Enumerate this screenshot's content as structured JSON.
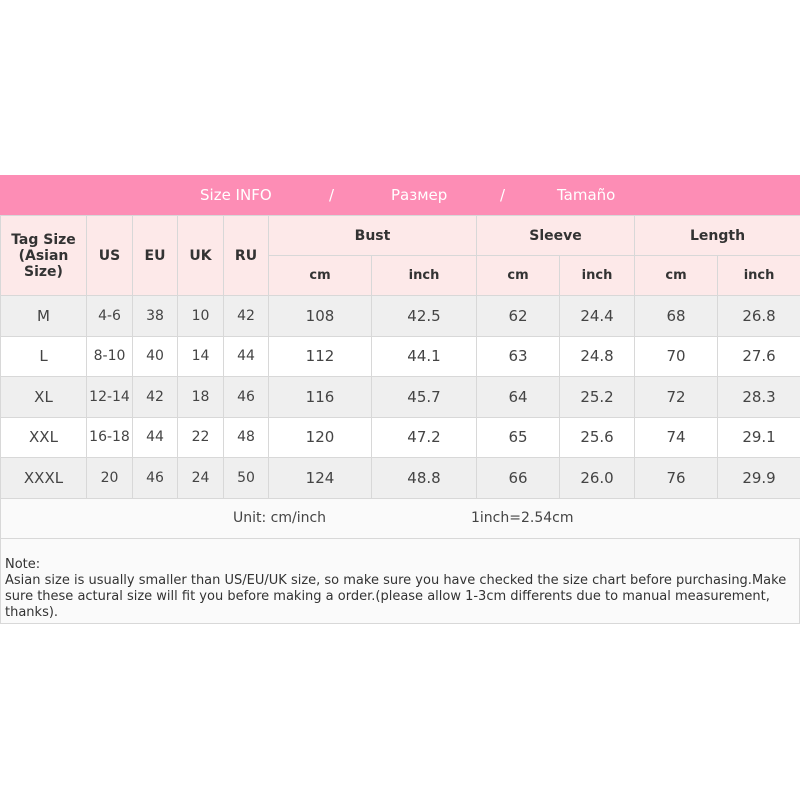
{
  "banner": {
    "title_en": "Size INFO",
    "sep": "/",
    "title_ru": "Размер",
    "title_es": "Tamaño"
  },
  "headers": {
    "tag": "Tag Size",
    "tag2": "(Asian Size)",
    "us": "US",
    "eu": "EU",
    "uk": "UK",
    "ru": "RU",
    "bust": "Bust",
    "sleeve": "Sleeve",
    "length": "Length",
    "cm": "cm",
    "inch": "inch"
  },
  "rows": [
    [
      "M",
      "4-6",
      "38",
      "10",
      "42",
      "108",
      "42.5",
      "62",
      "24.4",
      "68",
      "26.8"
    ],
    [
      "L",
      "8-10",
      "40",
      "14",
      "44",
      "112",
      "44.1",
      "63",
      "24.8",
      "70",
      "27.6"
    ],
    [
      "XL",
      "12-14",
      "42",
      "18",
      "46",
      "116",
      "45.7",
      "64",
      "25.2",
      "72",
      "28.3"
    ],
    [
      "XXL",
      "16-18",
      "44",
      "22",
      "48",
      "120",
      "47.2",
      "65",
      "25.6",
      "74",
      "29.1"
    ],
    [
      "XXXL",
      "20",
      "46",
      "24",
      "50",
      "124",
      "48.8",
      "66",
      "26.0",
      "76",
      "29.9"
    ]
  ],
  "unit": {
    "label": "Unit: cm/inch",
    "conversion": "1inch=2.54cm"
  },
  "note": {
    "title": "Note:",
    "text": "Asian size is usually smaller than US/EU/UK size, so make sure you have checked the size chart before purchasing.Make sure these actural size will fit you before making a order.(please allow 1-3cm differents due to manual measurement, thanks)."
  },
  "colors": {
    "banner": "#fd8db5",
    "header_bg": "#fde9e9",
    "row_alt": "#efefef"
  }
}
